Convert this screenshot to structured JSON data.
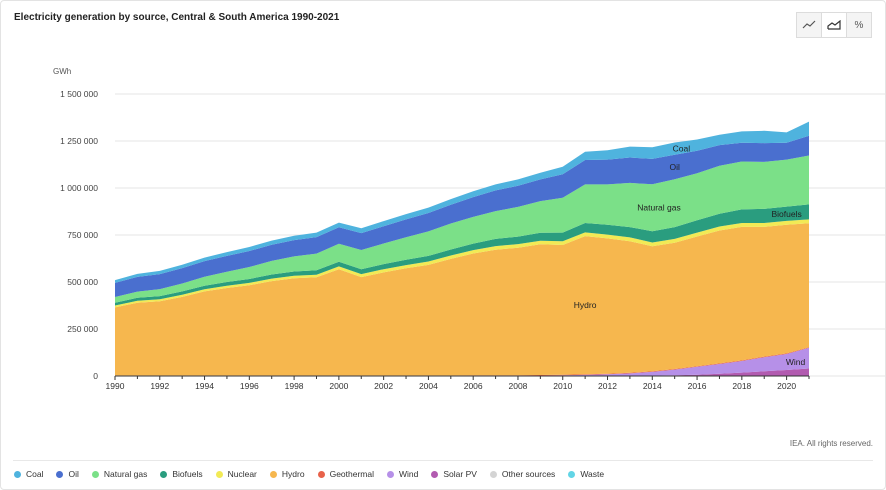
{
  "title": "Electricity generation by source, Central & South America 1990-2021",
  "credit": "IEA. All rights reserved.",
  "toolbar": [
    {
      "name": "line-chart-button",
      "icon": "line-chart-icon",
      "glyph": "",
      "active": false
    },
    {
      "name": "area-chart-button",
      "icon": "area-chart-icon",
      "glyph": "",
      "active": true
    },
    {
      "name": "percent-button",
      "icon": "percent-icon",
      "glyph": "%",
      "active": false
    }
  ],
  "legend": [
    {
      "label": "Coal",
      "color": "#4fb3de"
    },
    {
      "label": "Oil",
      "color": "#4a6fcf"
    },
    {
      "label": "Natural gas",
      "color": "#7be088"
    },
    {
      "label": "Biofuels",
      "color": "#2a9d7f"
    },
    {
      "label": "Nuclear",
      "color": "#f2ea55"
    },
    {
      "label": "Hydro",
      "color": "#f6b74e"
    },
    {
      "label": "Geothermal",
      "color": "#e8624a"
    },
    {
      "label": "Wind",
      "color": "#b690e8"
    },
    {
      "label": "Solar PV",
      "color": "#b25bb0"
    },
    {
      "label": "Other sources",
      "color": "#d4d4d4"
    },
    {
      "label": "Waste",
      "color": "#62d5e6"
    }
  ],
  "chart_data": {
    "type": "area",
    "stacked": true,
    "ylabel": "GWh",
    "ylim": [
      0,
      1500000
    ],
    "yticks": [
      0,
      250000,
      500000,
      750000,
      1000000,
      1250000,
      1500000
    ],
    "ytick_labels": [
      "0",
      "250 000",
      "500 000",
      "750 000",
      "1 000 000",
      "1 250 000",
      "1 500 000"
    ],
    "xlim": [
      1990,
      2021
    ],
    "xticks": [
      1990,
      1992,
      1994,
      1996,
      1998,
      2000,
      2002,
      2004,
      2006,
      2008,
      2010,
      2012,
      2014,
      2016,
      2018,
      2020
    ],
    "grid": true,
    "x": [
      1990,
      1991,
      1992,
      1993,
      1994,
      1995,
      1996,
      1997,
      1998,
      1999,
      2000,
      2001,
      2002,
      2003,
      2004,
      2005,
      2006,
      2007,
      2008,
      2009,
      2010,
      2011,
      2012,
      2013,
      2014,
      2015,
      2016,
      2017,
      2018,
      2019,
      2020,
      2021
    ],
    "series": [
      {
        "name": "Solar PV",
        "label": "",
        "color": "#b25bb0",
        "values": [
          0,
          0,
          0,
          0,
          0,
          0,
          0,
          0,
          0,
          0,
          0,
          0,
          0,
          0,
          0,
          0,
          0,
          0,
          0,
          0,
          0,
          0,
          0,
          1000,
          2000,
          4000,
          7000,
          12000,
          18000,
          25000,
          32000,
          40000
        ]
      },
      {
        "name": "Wind",
        "label": "Wind",
        "color": "#b690e8",
        "values": [
          0,
          0,
          0,
          0,
          0,
          0,
          0,
          0,
          0,
          0,
          0,
          0,
          0,
          0,
          0,
          0,
          500,
          1000,
          1500,
          2500,
          4000,
          6000,
          9000,
          13000,
          20000,
          30000,
          42000,
          52000,
          62000,
          75000,
          85000,
          110000
        ]
      },
      {
        "name": "Geothermal",
        "label": "",
        "color": "#e8624a",
        "values": [
          3000,
          3000,
          3000,
          3000,
          3000,
          3000,
          3000,
          3000,
          3000,
          3000,
          3000,
          3000,
          3000,
          3000,
          3000,
          3000,
          3000,
          3000,
          3000,
          3000,
          3000,
          3000,
          3000,
          3000,
          3000,
          3000,
          3000,
          3000,
          3000,
          3000,
          3000,
          3000
        ]
      },
      {
        "name": "Hydro",
        "label": "Hydro",
        "color": "#f6b74e",
        "values": [
          362000,
          387000,
          395000,
          418000,
          447000,
          465000,
          480000,
          502000,
          517000,
          522000,
          565000,
          523000,
          548000,
          570000,
          588000,
          620000,
          648000,
          668000,
          678000,
          695000,
          690000,
          735000,
          720000,
          700000,
          665000,
          672000,
          690000,
          707000,
          710000,
          690000,
          685000,
          660000
        ]
      },
      {
        "name": "Nuclear",
        "label": "",
        "color": "#f2ea55",
        "values": [
          10000,
          10000,
          10000,
          11000,
          11000,
          12000,
          12000,
          13000,
          13000,
          14000,
          15000,
          16000,
          17000,
          17000,
          18000,
          18000,
          18000,
          19000,
          19000,
          19000,
          20000,
          20000,
          20000,
          20000,
          20000,
          20000,
          21000,
          21000,
          21000,
          21000,
          20000,
          20000
        ]
      },
      {
        "name": "Biofuels",
        "label": "Biofuels",
        "color": "#2a9d7f",
        "values": [
          15000,
          16000,
          17000,
          18000,
          19000,
          20000,
          21000,
          22000,
          23000,
          24000,
          25000,
          26000,
          27000,
          28000,
          30000,
          32000,
          35000,
          38000,
          40000,
          43000,
          46000,
          50000,
          52000,
          55000,
          60000,
          63000,
          65000,
          68000,
          72000,
          75000,
          76000,
          80000
        ]
      },
      {
        "name": "Natural gas",
        "label": "Natural gas",
        "color": "#7be088",
        "values": [
          30000,
          33000,
          37000,
          42000,
          48000,
          55000,
          64000,
          72000,
          80000,
          88000,
          95000,
          102000,
          110000,
          120000,
          130000,
          138000,
          142000,
          148000,
          158000,
          168000,
          185000,
          205000,
          215000,
          235000,
          250000,
          255000,
          250000,
          255000,
          255000,
          250000,
          250000,
          260000
        ]
      },
      {
        "name": "Oil",
        "label": "Oil",
        "color": "#4a6fcf",
        "values": [
          75000,
          78000,
          80000,
          82000,
          83000,
          84000,
          85000,
          86000,
          87000,
          88000,
          88000,
          90000,
          92000,
          95000,
          98000,
          100000,
          105000,
          110000,
          112000,
          115000,
          125000,
          130000,
          132000,
          135000,
          135000,
          130000,
          120000,
          110000,
          100000,
          100000,
          90000,
          105000
        ]
      },
      {
        "name": "Coal",
        "label": "Coal",
        "color": "#4fb3de",
        "values": [
          15000,
          16000,
          17000,
          18000,
          19000,
          20000,
          21000,
          22000,
          23000,
          24000,
          25000,
          26000,
          27000,
          28000,
          29000,
          30000,
          31000,
          32000,
          34000,
          36000,
          40000,
          44000,
          50000,
          58000,
          62000,
          65000,
          60000,
          55000,
          60000,
          65000,
          55000,
          75000
        ]
      },
      {
        "name": "Other sources",
        "label": "",
        "color": "#d4d4d4",
        "values": [
          0,
          0,
          0,
          0,
          0,
          0,
          0,
          0,
          0,
          0,
          0,
          0,
          0,
          0,
          0,
          0,
          0,
          0,
          0,
          0,
          0,
          0,
          0,
          0,
          0,
          0,
          0,
          0,
          0,
          0,
          0,
          0
        ]
      },
      {
        "name": "Waste",
        "label": "",
        "color": "#62d5e6",
        "values": [
          0,
          0,
          0,
          0,
          0,
          0,
          0,
          0,
          0,
          0,
          0,
          0,
          0,
          0,
          0,
          0,
          0,
          0,
          0,
          0,
          0,
          0,
          0,
          0,
          0,
          0,
          0,
          0,
          0,
          0,
          0,
          0
        ]
      }
    ]
  }
}
